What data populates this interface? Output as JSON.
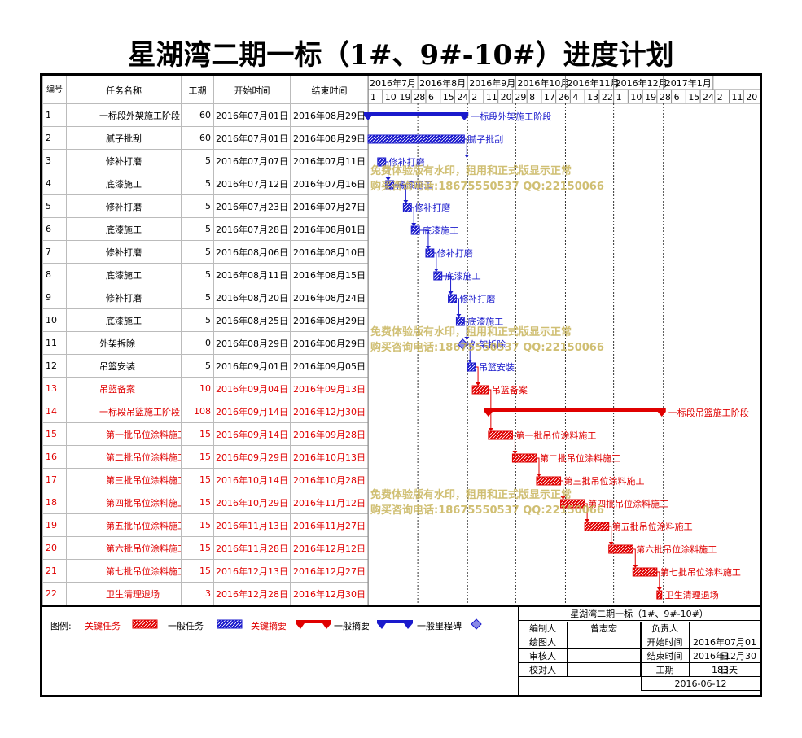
{
  "title": "星湖湾二期一标（1#、9#-10#）进度计划",
  "columns": {
    "id": "编号",
    "name": "任务名称",
    "duration": "工期",
    "start": "开始时间",
    "end": "结束时间"
  },
  "months": [
    "2016年7月",
    "2016年8月",
    "2016年9月",
    "2016年10月",
    "2016年11月",
    "2016年12月",
    "2017年1月"
  ],
  "days": [
    "1",
    "10",
    "19",
    "28",
    "6",
    "15",
    "24",
    "2",
    "11",
    "20",
    "29",
    "8",
    "17",
    "26",
    "4",
    "13",
    "22",
    "1",
    "10",
    "19",
    "28",
    "6",
    "15",
    "24",
    "2",
    "11",
    "20"
  ],
  "tasks": [
    {
      "id": "1",
      "name": "一标段外架施工阶段",
      "indent": 1,
      "duration": "60",
      "start": "2016年07月01日",
      "end": "2016年08月29日",
      "critical": false,
      "type": "summary",
      "label": "一标段外架施工阶段"
    },
    {
      "id": "2",
      "name": "腻子批刮",
      "indent": 2,
      "duration": "60",
      "start": "2016年07月01日",
      "end": "2016年08月29日",
      "critical": false,
      "type": "task",
      "label": "腻子批刮"
    },
    {
      "id": "3",
      "name": "修补打磨",
      "indent": 2,
      "duration": "5",
      "start": "2016年07月07日",
      "end": "2016年07月11日",
      "critical": false,
      "type": "task",
      "label": "修补打磨"
    },
    {
      "id": "4",
      "name": "底漆施工",
      "indent": 2,
      "duration": "5",
      "start": "2016年07月12日",
      "end": "2016年07月16日",
      "critical": false,
      "type": "task",
      "label": "底漆施工"
    },
    {
      "id": "5",
      "name": "修补打磨",
      "indent": 2,
      "duration": "5",
      "start": "2016年07月23日",
      "end": "2016年07月27日",
      "critical": false,
      "type": "task",
      "label": "修补打磨"
    },
    {
      "id": "6",
      "name": "底漆施工",
      "indent": 2,
      "duration": "5",
      "start": "2016年07月28日",
      "end": "2016年08月01日",
      "critical": false,
      "type": "task",
      "label": "底漆施工"
    },
    {
      "id": "7",
      "name": "修补打磨",
      "indent": 2,
      "duration": "5",
      "start": "2016年08月06日",
      "end": "2016年08月10日",
      "critical": false,
      "type": "task",
      "label": "修补打磨"
    },
    {
      "id": "8",
      "name": "底漆施工",
      "indent": 2,
      "duration": "5",
      "start": "2016年08月11日",
      "end": "2016年08月15日",
      "critical": false,
      "type": "task",
      "label": "底漆施工"
    },
    {
      "id": "9",
      "name": "修补打磨",
      "indent": 2,
      "duration": "5",
      "start": "2016年08月20日",
      "end": "2016年08月24日",
      "critical": false,
      "type": "task",
      "label": "修补打磨"
    },
    {
      "id": "10",
      "name": "底漆施工",
      "indent": 2,
      "duration": "5",
      "start": "2016年08月25日",
      "end": "2016年08月29日",
      "critical": false,
      "type": "task",
      "label": "底漆施工"
    },
    {
      "id": "11",
      "name": "外架拆除",
      "indent": 1,
      "duration": "0",
      "start": "2016年08月29日",
      "end": "2016年08月29日",
      "critical": false,
      "type": "milestone",
      "label": "外架拆除"
    },
    {
      "id": "12",
      "name": "吊篮安装",
      "indent": 1,
      "duration": "5",
      "start": "2016年09月01日",
      "end": "2016年09月05日",
      "critical": false,
      "type": "task",
      "label": "吊篮安装"
    },
    {
      "id": "13",
      "name": "吊篮备案",
      "indent": 1,
      "duration": "10",
      "start": "2016年09月04日",
      "end": "2016年09月13日",
      "critical": true,
      "type": "task",
      "label": "吊篮备案"
    },
    {
      "id": "14",
      "name": "一标段吊篮施工阶段",
      "indent": 1,
      "duration": "108",
      "start": "2016年09月14日",
      "end": "2016年12月30日",
      "critical": true,
      "type": "summary",
      "label": "一标段吊篮施工阶段"
    },
    {
      "id": "15",
      "name": "第一批吊位涂料施工",
      "indent": 2,
      "duration": "15",
      "start": "2016年09月14日",
      "end": "2016年09月28日",
      "critical": true,
      "type": "task",
      "label": "第一批吊位涂料施工"
    },
    {
      "id": "16",
      "name": "第二批吊位涂料施工",
      "indent": 2,
      "duration": "15",
      "start": "2016年09月29日",
      "end": "2016年10月13日",
      "critical": true,
      "type": "task",
      "label": "第二批吊位涂料施工"
    },
    {
      "id": "17",
      "name": "第三批吊位涂料施工",
      "indent": 2,
      "duration": "15",
      "start": "2016年10月14日",
      "end": "2016年10月28日",
      "critical": true,
      "type": "task",
      "label": "第三批吊位涂料施工"
    },
    {
      "id": "18",
      "name": "第四批吊位涂料施工",
      "indent": 2,
      "duration": "15",
      "start": "2016年10月29日",
      "end": "2016年11月12日",
      "critical": true,
      "type": "task",
      "label": "第四批吊位涂料施工"
    },
    {
      "id": "19",
      "name": "第五批吊位涂料施工",
      "indent": 2,
      "duration": "15",
      "start": "2016年11月13日",
      "end": "2016年11月27日",
      "critical": true,
      "type": "task",
      "label": "第五批吊位涂料施工"
    },
    {
      "id": "20",
      "name": "第六批吊位涂料施工",
      "indent": 2,
      "duration": "15",
      "start": "2016年11月28日",
      "end": "2016年12月12日",
      "critical": true,
      "type": "task",
      "label": "第六批吊位涂料施工"
    },
    {
      "id": "21",
      "name": "第七批吊位涂料施工",
      "indent": 2,
      "duration": "15",
      "start": "2016年12月13日",
      "end": "2016年12月27日",
      "critical": true,
      "type": "task",
      "label": "第七批吊位涂料施工"
    },
    {
      "id": "22",
      "name": "卫生清理退场",
      "indent": 2,
      "duration": "3",
      "start": "2016年12月28日",
      "end": "2016年12月30日",
      "critical": true,
      "type": "task",
      "label": "卫生清理退场"
    }
  ],
  "watermark": {
    "line1": "免费体验版有水印，租用和正式版显示正常",
    "line2": "购买咨询电话:18675550537 QQ:22150066"
  },
  "legend": {
    "title": "图例:",
    "items": [
      "关键任务",
      "一般任务",
      "关键摘要",
      "一般摘要",
      "一般里程碑"
    ]
  },
  "info": {
    "project": "星湖湾二期一标（1#、9#-10#）",
    "editor_label": "编制人",
    "editor": "曾志宏",
    "owner_label": "负责人",
    "owner": "",
    "drawer_label": "绘图人",
    "drawer": "",
    "start_label": "开始时间",
    "start": "2016年07月01日",
    "reviewer_label": "审核人",
    "reviewer": "",
    "end_label": "结束时间",
    "end": "2016年12月30日",
    "checker_label": "校对人",
    "checker": "",
    "duration_label": "工期",
    "duration": "183天",
    "date": "2016-06-12"
  },
  "colors": {
    "critical": "#e00000",
    "normal": "#1a1acc",
    "watermark": "#c8b45a"
  }
}
